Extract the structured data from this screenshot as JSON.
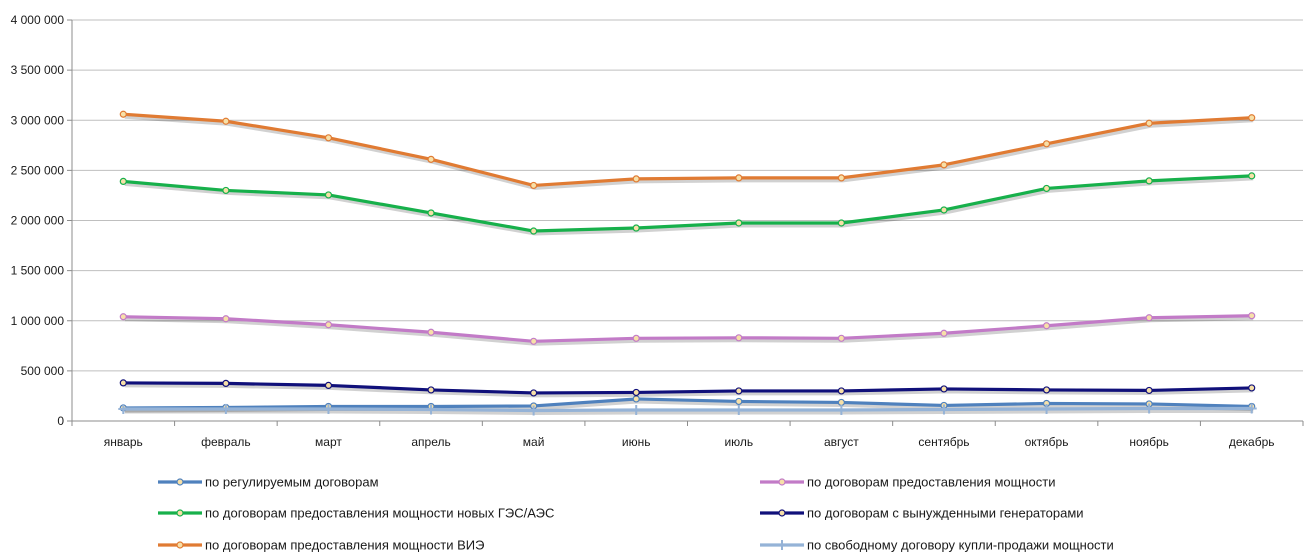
{
  "chart_data": {
    "type": "line",
    "categories": [
      "январь",
      "февраль",
      "март",
      "апрель",
      "май",
      "июнь",
      "июль",
      "август",
      "сентябрь",
      "октябрь",
      "ноябрь",
      "декабрь"
    ],
    "ylim": [
      0,
      4000000
    ],
    "y_ticks": [
      0,
      500000,
      1000000,
      1500000,
      2000000,
      2500000,
      3000000,
      3500000,
      4000000
    ],
    "y_tick_labels": [
      "0",
      "500 000",
      "1 000 000",
      "1 500 000",
      "2 000 000",
      "2 500 000",
      "3 000 000",
      "3 500 000",
      "4 000 000"
    ],
    "grid": true,
    "legend_position": "bottom",
    "series": [
      {
        "name": "по регулируемым договорам",
        "color": "#4f81bd",
        "marker": "circle",
        "values": [
          130000,
          135000,
          145000,
          145000,
          150000,
          220000,
          195000,
          185000,
          155000,
          175000,
          170000,
          145000
        ]
      },
      {
        "name": "по договорам предоставления мощности",
        "color": "#c27bc7",
        "marker": "circle",
        "values": [
          1040000,
          1020000,
          960000,
          885000,
          795000,
          825000,
          830000,
          825000,
          875000,
          950000,
          1030000,
          1050000
        ]
      },
      {
        "name": "по договорам предоставления мощности новых ГЭС/АЭС",
        "color": "#17b04b",
        "marker": "circle",
        "values": [
          2390000,
          2300000,
          2255000,
          2075000,
          1895000,
          1925000,
          1975000,
          1975000,
          2105000,
          2320000,
          2395000,
          2445000
        ]
      },
      {
        "name": "по договорам с вынужденными генераторами",
        "color": "#10107a",
        "marker": "circle",
        "values": [
          380000,
          375000,
          355000,
          310000,
          280000,
          285000,
          300000,
          300000,
          320000,
          310000,
          305000,
          330000
        ]
      },
      {
        "name": "по договорам предоставления мощности ВИЭ",
        "color": "#e07b33",
        "marker": "circle",
        "values": [
          3060000,
          2990000,
          2825000,
          2610000,
          2350000,
          2415000,
          2425000,
          2425000,
          2555000,
          2765000,
          2970000,
          3025000
        ]
      },
      {
        "name": "по свободному договору купли-продажи мощности",
        "color": "#95b3d7",
        "marker": "plus",
        "values": [
          120000,
          120000,
          120000,
          115000,
          105000,
          110000,
          110000,
          110000,
          115000,
          120000,
          125000,
          125000
        ]
      }
    ]
  }
}
